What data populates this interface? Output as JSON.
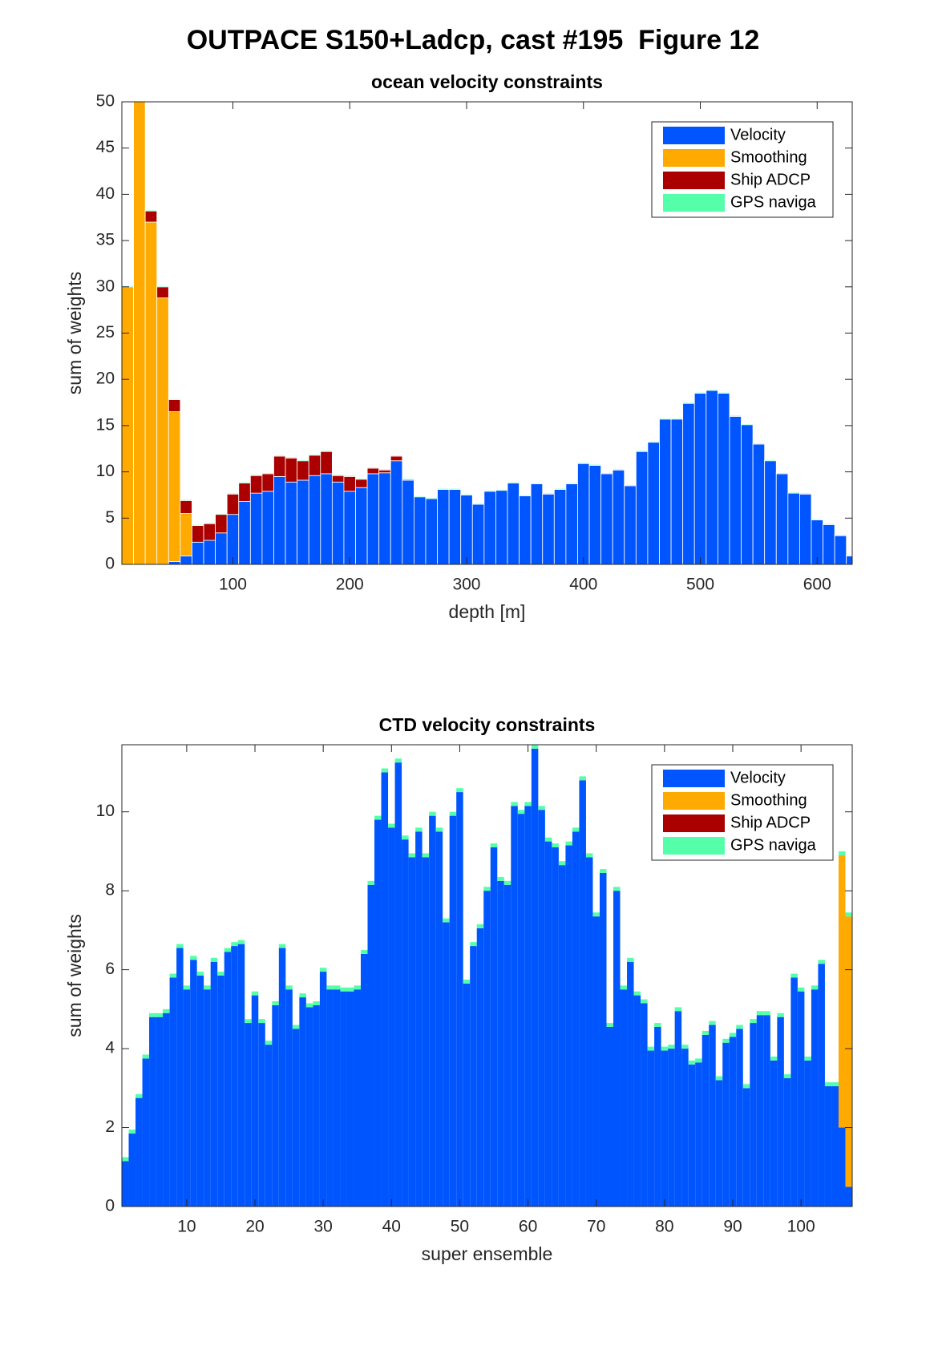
{
  "title": "OUTPACE S150+Ladcp, cast #195  Figure 12",
  "chart_data": [
    {
      "type": "bar",
      "stacked": true,
      "title": "ocean velocity constraints",
      "xlabel": "depth [m]",
      "ylabel": "sum of weights",
      "x": [
        10,
        20,
        30,
        40,
        50,
        60,
        70,
        80,
        90,
        100,
        110,
        120,
        130,
        140,
        150,
        160,
        170,
        180,
        190,
        200,
        210,
        220,
        230,
        240,
        250,
        260,
        270,
        280,
        290,
        300,
        310,
        320,
        330,
        340,
        350,
        360,
        370,
        380,
        390,
        400,
        410,
        420,
        430,
        440,
        450,
        460,
        470,
        480,
        490,
        500,
        510,
        520,
        530,
        540,
        550,
        560,
        570,
        580,
        590,
        600,
        610,
        620,
        630
      ],
      "bar_width": 10,
      "xlim": [
        5,
        630
      ],
      "xticks": [
        100,
        200,
        300,
        400,
        500,
        600
      ],
      "ylim": [
        0,
        50
      ],
      "yticks": [
        0,
        5,
        10,
        15,
        20,
        25,
        30,
        35,
        40,
        45,
        50
      ],
      "legend": "northeast",
      "series": [
        {
          "name": "Velocity",
          "color": "#0055ff",
          "values": [
            0,
            0,
            0,
            0,
            0.3,
            0.9,
            2.4,
            2.6,
            3.4,
            5.4,
            6.8,
            7.7,
            7.9,
            9.5,
            8.9,
            9.1,
            9.6,
            9.8,
            8.9,
            7.9,
            8.3,
            9.8,
            9.9,
            11.2,
            9.1,
            7.3,
            7.1,
            8.1,
            8.1,
            7.5,
            6.5,
            7.9,
            8.0,
            8.8,
            7.4,
            8.7,
            7.6,
            8.1,
            8.7,
            10.9,
            10.7,
            9.8,
            10.2,
            8.5,
            12.2,
            13.2,
            15.7,
            15.7,
            17.4,
            18.5,
            18.8,
            18.5,
            16.0,
            15.1,
            13.0,
            11.2,
            9.8,
            7.7,
            7.6,
            4.8,
            4.3,
            3.1,
            0.9
          ]
        },
        {
          "name": "Smoothing",
          "color": "#ffaa00",
          "values": [
            30,
            50,
            37,
            28.8,
            16.2,
            4.6,
            0,
            0,
            0,
            0,
            0,
            0,
            0,
            0,
            0,
            0,
            0,
            0,
            0,
            0,
            0,
            0,
            0,
            0,
            0,
            0,
            0,
            0,
            0,
            0,
            0,
            0,
            0,
            0,
            0,
            0,
            0,
            0,
            0,
            0,
            0,
            0,
            0,
            0,
            0,
            0,
            0,
            0,
            0,
            0,
            0,
            0,
            0,
            0,
            0,
            0,
            0,
            0,
            0,
            0,
            0,
            0,
            0
          ]
        },
        {
          "name": "Ship ADCP",
          "color": "#aa0000",
          "values": [
            0,
            0,
            1.2,
            1.2,
            1.3,
            1.4,
            1.8,
            1.8,
            2.0,
            2.2,
            2.0,
            1.9,
            1.9,
            2.2,
            2.6,
            2.1,
            2.2,
            2.4,
            0.7,
            1.6,
            0.9,
            0.6,
            0.3,
            0.5,
            0.1,
            0,
            0,
            0,
            0,
            0,
            0,
            0,
            0,
            0,
            0,
            0,
            0,
            0,
            0,
            0,
            0,
            0,
            0,
            0,
            0,
            0,
            0,
            0,
            0,
            0,
            0,
            0,
            0,
            0,
            0,
            0,
            0,
            0,
            0,
            0,
            0,
            0,
            0
          ]
        },
        {
          "name": "GPS naviga",
          "color": "#55ffaa",
          "values": [
            0.1,
            0.1,
            0.1,
            0.1,
            0.1,
            0.1,
            0.1,
            0.1,
            0.1,
            0.1,
            0.1,
            0.1,
            0.1,
            0.1,
            0.1,
            0.1,
            0.1,
            0.1,
            0.1,
            0.1,
            0.1,
            0.1,
            0.1,
            0.1,
            0.1,
            0.1,
            0.1,
            0.1,
            0.1,
            0.1,
            0.1,
            0.1,
            0.1,
            0.1,
            0.1,
            0.1,
            0.1,
            0.1,
            0.1,
            0.1,
            0.1,
            0.1,
            0.1,
            0.1,
            0.1,
            0.1,
            0.1,
            0.1,
            0.1,
            0.1,
            0.1,
            0.1,
            0.1,
            0.1,
            0.1,
            0.1,
            0.1,
            0.1,
            0.1,
            0.1,
            0.1,
            0.1,
            0.1
          ]
        }
      ]
    },
    {
      "type": "bar",
      "stacked": true,
      "title": "CTD velocity constraints",
      "xlabel": "super ensemble",
      "ylabel": "sum of weights",
      "x": [
        1,
        2,
        3,
        4,
        5,
        6,
        7,
        8,
        9,
        10,
        11,
        12,
        13,
        14,
        15,
        16,
        17,
        18,
        19,
        20,
        21,
        22,
        23,
        24,
        25,
        26,
        27,
        28,
        29,
        30,
        31,
        32,
        33,
        34,
        35,
        36,
        37,
        38,
        39,
        40,
        41,
        42,
        43,
        44,
        45,
        46,
        47,
        48,
        49,
        50,
        51,
        52,
        53,
        54,
        55,
        56,
        57,
        58,
        59,
        60,
        61,
        62,
        63,
        64,
        65,
        66,
        67,
        68,
        69,
        70,
        71,
        72,
        73,
        74,
        75,
        76,
        77,
        78,
        79,
        80,
        81,
        82,
        83,
        84,
        85,
        86,
        87,
        88,
        89,
        90,
        91,
        92,
        93,
        94,
        95,
        96,
        97,
        98,
        99,
        100,
        101,
        102,
        103,
        104,
        105,
        106,
        107
      ],
      "bar_width": 1,
      "xlim": [
        0.5,
        107.5
      ],
      "xticks": [
        10,
        20,
        30,
        40,
        50,
        60,
        70,
        80,
        90,
        100
      ],
      "ylim": [
        0,
        11.7
      ],
      "yticks": [
        0,
        2,
        4,
        6,
        8,
        10
      ],
      "legend": "northeast",
      "series": [
        {
          "name": "Velocity",
          "color": "#0055ff",
          "values": [
            1.15,
            1.85,
            2.75,
            3.75,
            4.8,
            4.8,
            4.9,
            5.8,
            6.55,
            5.5,
            6.25,
            5.85,
            5.5,
            6.2,
            5.85,
            6.45,
            6.6,
            6.65,
            4.65,
            5.35,
            4.65,
            4.1,
            5.1,
            6.55,
            5.5,
            4.5,
            5.3,
            5.05,
            5.1,
            5.95,
            5.5,
            5.5,
            5.45,
            5.45,
            5.5,
            6.4,
            8.15,
            9.8,
            11.0,
            9.6,
            11.25,
            9.3,
            8.85,
            9.5,
            8.85,
            9.9,
            9.5,
            7.2,
            9.9,
            10.5,
            5.65,
            6.6,
            7.05,
            8.0,
            9.1,
            8.25,
            8.15,
            10.15,
            9.95,
            10.15,
            11.6,
            10.05,
            9.25,
            9.1,
            8.65,
            9.15,
            9.5,
            10.8,
            8.85,
            7.35,
            8.45,
            4.55,
            8.0,
            5.5,
            6.2,
            5.35,
            5.15,
            3.95,
            4.55,
            3.95,
            4.0,
            4.95,
            4.0,
            3.6,
            3.65,
            4.35,
            4.6,
            3.2,
            4.15,
            4.3,
            4.5,
            3.0,
            4.65,
            4.85,
            4.85,
            3.7,
            4.8,
            3.25,
            5.8,
            5.45,
            3.7,
            5.5,
            6.15,
            3.05,
            3.05,
            2.0,
            0.5
          ]
        },
        {
          "name": "Smoothing",
          "color": "#ffaa00",
          "values": [
            0,
            0,
            0,
            0,
            0,
            0,
            0,
            0,
            0,
            0,
            0,
            0,
            0,
            0,
            0,
            0,
            0,
            0,
            0,
            0,
            0,
            0,
            0,
            0,
            0,
            0,
            0,
            0,
            0,
            0,
            0,
            0,
            0,
            0,
            0,
            0,
            0,
            0,
            0,
            0,
            0,
            0,
            0,
            0,
            0,
            0,
            0,
            0,
            0,
            0,
            0,
            0,
            0,
            0,
            0,
            0,
            0,
            0,
            0,
            0,
            0,
            0,
            0,
            0,
            0,
            0,
            0,
            0,
            0,
            0,
            0,
            0,
            0,
            0,
            0,
            0,
            0,
            0,
            0,
            0,
            0,
            0,
            0,
            0,
            0,
            0,
            0,
            0,
            0,
            0,
            0,
            0,
            0,
            0,
            0,
            0,
            0,
            0,
            0,
            0,
            0,
            0,
            0,
            0,
            0,
            6.9,
            6.85
          ]
        },
        {
          "name": "Ship ADCP",
          "color": "#aa0000",
          "values": [
            0,
            0,
            0,
            0,
            0,
            0,
            0,
            0,
            0,
            0,
            0,
            0,
            0,
            0,
            0,
            0,
            0,
            0,
            0,
            0,
            0,
            0,
            0,
            0,
            0,
            0,
            0,
            0,
            0,
            0,
            0,
            0,
            0,
            0,
            0,
            0,
            0,
            0,
            0,
            0,
            0,
            0,
            0,
            0,
            0,
            0,
            0,
            0,
            0,
            0,
            0,
            0,
            0,
            0,
            0,
            0,
            0,
            0,
            0,
            0,
            0,
            0,
            0,
            0,
            0,
            0,
            0,
            0,
            0,
            0,
            0,
            0,
            0,
            0,
            0,
            0,
            0,
            0,
            0,
            0,
            0,
            0,
            0,
            0,
            0,
            0,
            0,
            0,
            0,
            0,
            0,
            0,
            0,
            0,
            0,
            0,
            0,
            0,
            0,
            0,
            0,
            0,
            0,
            0,
            0,
            0,
            0
          ]
        },
        {
          "name": "GPS naviga",
          "color": "#55ffaa",
          "values": [
            0.1,
            0.1,
            0.1,
            0.1,
            0.1,
            0.1,
            0.1,
            0.1,
            0.1,
            0.1,
            0.1,
            0.1,
            0.1,
            0.1,
            0.1,
            0.1,
            0.1,
            0.1,
            0.1,
            0.1,
            0.1,
            0.1,
            0.1,
            0.1,
            0.1,
            0.1,
            0.1,
            0.1,
            0.1,
            0.1,
            0.1,
            0.1,
            0.1,
            0.1,
            0.1,
            0.1,
            0.1,
            0.1,
            0.1,
            0.1,
            0.1,
            0.1,
            0.1,
            0.1,
            0.1,
            0.1,
            0.1,
            0.1,
            0.1,
            0.1,
            0.1,
            0.1,
            0.1,
            0.1,
            0.1,
            0.1,
            0.1,
            0.1,
            0.1,
            0.1,
            0.1,
            0.1,
            0.1,
            0.1,
            0.1,
            0.1,
            0.1,
            0.1,
            0.1,
            0.1,
            0.1,
            0.1,
            0.1,
            0.1,
            0.1,
            0.1,
            0.1,
            0.1,
            0.1,
            0.1,
            0.1,
            0.1,
            0.1,
            0.1,
            0.1,
            0.1,
            0.1,
            0.1,
            0.1,
            0.1,
            0.1,
            0.1,
            0.1,
            0.1,
            0.1,
            0.1,
            0.1,
            0.1,
            0.1,
            0.1,
            0.1,
            0.1,
            0.1,
            0.1,
            0.1,
            0.1,
            0.1
          ]
        }
      ]
    }
  ]
}
